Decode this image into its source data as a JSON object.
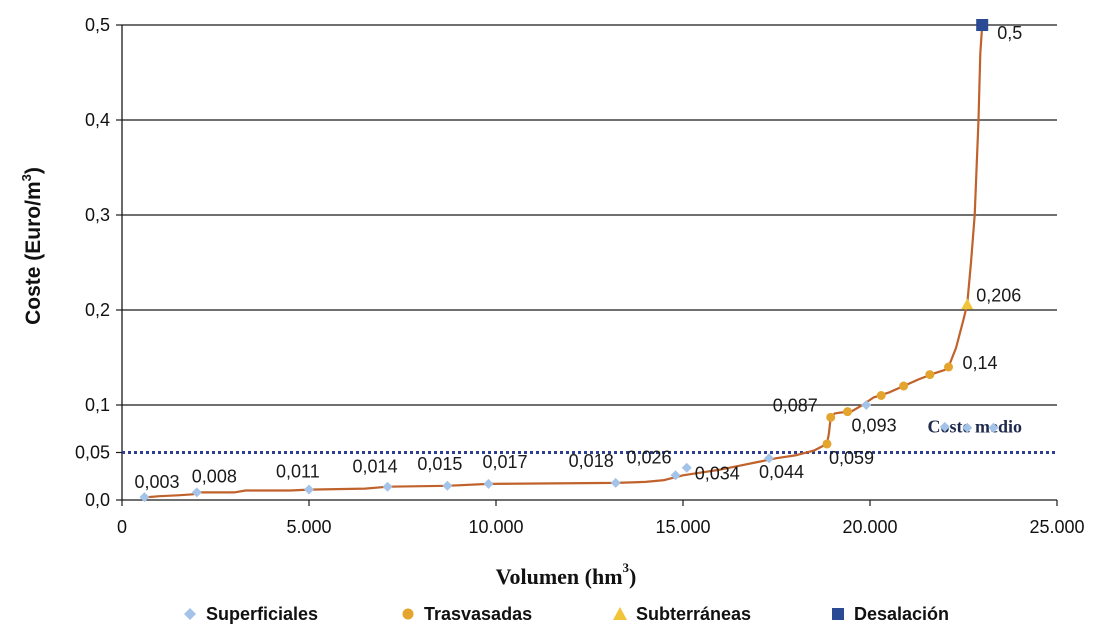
{
  "chart_data": {
    "type": "line",
    "xlabel": "Volumen (hm",
    "xlabel_sup": "3",
    "xlabel_end": ")",
    "ylabel": "Coste (Euro/m",
    "ylabel_sup": "3",
    "ylabel_end": ")",
    "xlim": [
      0,
      25000
    ],
    "ylim": [
      0,
      0.5
    ],
    "x_ticks": [
      {
        "value": 0,
        "label": "0"
      },
      {
        "value": 5000,
        "label": "5.000"
      },
      {
        "value": 10000,
        "label": "10.000"
      },
      {
        "value": 15000,
        "label": "15.000"
      },
      {
        "value": 20000,
        "label": "20.000"
      },
      {
        "value": 25000,
        "label": "25.000"
      }
    ],
    "y_ticks": [
      {
        "value": 0,
        "label": "0,0"
      },
      {
        "value": 0.05,
        "label": "0,05"
      },
      {
        "value": 0.1,
        "label": "0,1"
      },
      {
        "value": 0.2,
        "label": "0,2"
      },
      {
        "value": 0.3,
        "label": "0,3"
      },
      {
        "value": 0.4,
        "label": "0,4"
      },
      {
        "value": 0.5,
        "label": "0,5"
      }
    ],
    "gridlines_y": [
      0.1,
      0.2,
      0.3,
      0.4,
      0.5
    ],
    "curve_color": "#c0622b",
    "curve": [
      [
        600,
        0.002
      ],
      [
        700,
        0.003
      ],
      [
        1000,
        0.004
      ],
      [
        1500,
        0.005
      ],
      [
        1900,
        0.006
      ],
      [
        2000,
        0.008
      ],
      [
        3000,
        0.008
      ],
      [
        3300,
        0.01
      ],
      [
        4500,
        0.01
      ],
      [
        5000,
        0.011
      ],
      [
        6500,
        0.012
      ],
      [
        7100,
        0.014
      ],
      [
        8700,
        0.015
      ],
      [
        9800,
        0.017
      ],
      [
        13200,
        0.018
      ],
      [
        14000,
        0.019
      ],
      [
        14500,
        0.021
      ],
      [
        14800,
        0.024
      ],
      [
        15000,
        0.026
      ],
      [
        15500,
        0.029
      ],
      [
        16000,
        0.032
      ],
      [
        16500,
        0.036
      ],
      [
        17000,
        0.04
      ],
      [
        17500,
        0.044
      ],
      [
        18000,
        0.047
      ],
      [
        18500,
        0.052
      ],
      [
        18850,
        0.059
      ],
      [
        18900,
        0.07
      ],
      [
        18950,
        0.087
      ],
      [
        19050,
        0.091
      ],
      [
        19200,
        0.092
      ],
      [
        19500,
        0.093
      ],
      [
        19800,
        0.1
      ],
      [
        20100,
        0.108
      ],
      [
        20500,
        0.113
      ],
      [
        20900,
        0.12
      ],
      [
        21300,
        0.127
      ],
      [
        21700,
        0.133
      ],
      [
        22000,
        0.137
      ],
      [
        22100,
        0.14
      ],
      [
        22300,
        0.16
      ],
      [
        22500,
        0.19
      ],
      [
        22600,
        0.206
      ],
      [
        22700,
        0.25
      ],
      [
        22800,
        0.3
      ],
      [
        22900,
        0.4
      ],
      [
        22950,
        0.47
      ],
      [
        23000,
        0.5
      ]
    ],
    "reference_line": {
      "name": "Coste medio",
      "value": 0.05,
      "color": "#2e3f8f"
    },
    "series": [
      {
        "name": "Superficiales",
        "marker": "diamond",
        "color": "#a4c3e8",
        "points": [
          [
            600,
            0.003
          ],
          [
            2000,
            0.008
          ],
          [
            5000,
            0.011
          ],
          [
            7100,
            0.014
          ],
          [
            8700,
            0.015
          ],
          [
            9800,
            0.017
          ],
          [
            13200,
            0.018
          ],
          [
            14800,
            0.026
          ],
          [
            15100,
            0.034
          ],
          [
            17300,
            0.044
          ],
          [
            19900,
            0.1
          ],
          [
            22000,
            0.077
          ],
          [
            22600,
            0.076
          ],
          [
            23300,
            0.076
          ]
        ]
      },
      {
        "name": "Trasvasadas",
        "marker": "circle",
        "color": "#e3a52e",
        "points": [
          [
            18850,
            0.059
          ],
          [
            18950,
            0.087
          ],
          [
            19400,
            0.093
          ],
          [
            20300,
            0.11
          ],
          [
            20900,
            0.12
          ],
          [
            21600,
            0.132
          ],
          [
            22100,
            0.14
          ]
        ]
      },
      {
        "name": "Subterráneas",
        "marker": "triangle",
        "color": "#f2c43a",
        "points": [
          [
            22600,
            0.206
          ]
        ]
      },
      {
        "name": "Desalación",
        "marker": "square",
        "color": "#2b4a94",
        "points": [
          [
            23000,
            0.5
          ]
        ]
      }
    ],
    "data_labels": [
      {
        "text": "0,003",
        "x": 600,
        "y": 0.003
      },
      {
        "text": "0,008",
        "x": 2000,
        "y": 0.008
      },
      {
        "text": "0,011",
        "x": 5000,
        "y": 0.011
      },
      {
        "text": "0,014",
        "x": 7100,
        "y": 0.014
      },
      {
        "text": "0,015",
        "x": 8700,
        "y": 0.015
      },
      {
        "text": "0,017",
        "x": 9800,
        "y": 0.017
      },
      {
        "text": "0,018",
        "x": 13200,
        "y": 0.018
      },
      {
        "text": "0,026",
        "x": 14800,
        "y": 0.026
      },
      {
        "text": "0,034",
        "x": 15100,
        "y": 0.034
      },
      {
        "text": "0,044",
        "x": 17300,
        "y": 0.044
      },
      {
        "text": "0,059",
        "x": 18850,
        "y": 0.059
      },
      {
        "text": "0,087",
        "x": 18950,
        "y": 0.087
      },
      {
        "text": "0,093",
        "x": 19400,
        "y": 0.093
      },
      {
        "text": "0,14",
        "x": 22100,
        "y": 0.14
      },
      {
        "text": "0,206",
        "x": 22600,
        "y": 0.206
      },
      {
        "text": "0,5",
        "x": 23000,
        "y": 0.5
      }
    ],
    "legend": {
      "placement": "bottom",
      "entries": [
        "Superficiales",
        "Trasvasadas",
        "Subterráneas",
        "Desalación"
      ]
    }
  }
}
